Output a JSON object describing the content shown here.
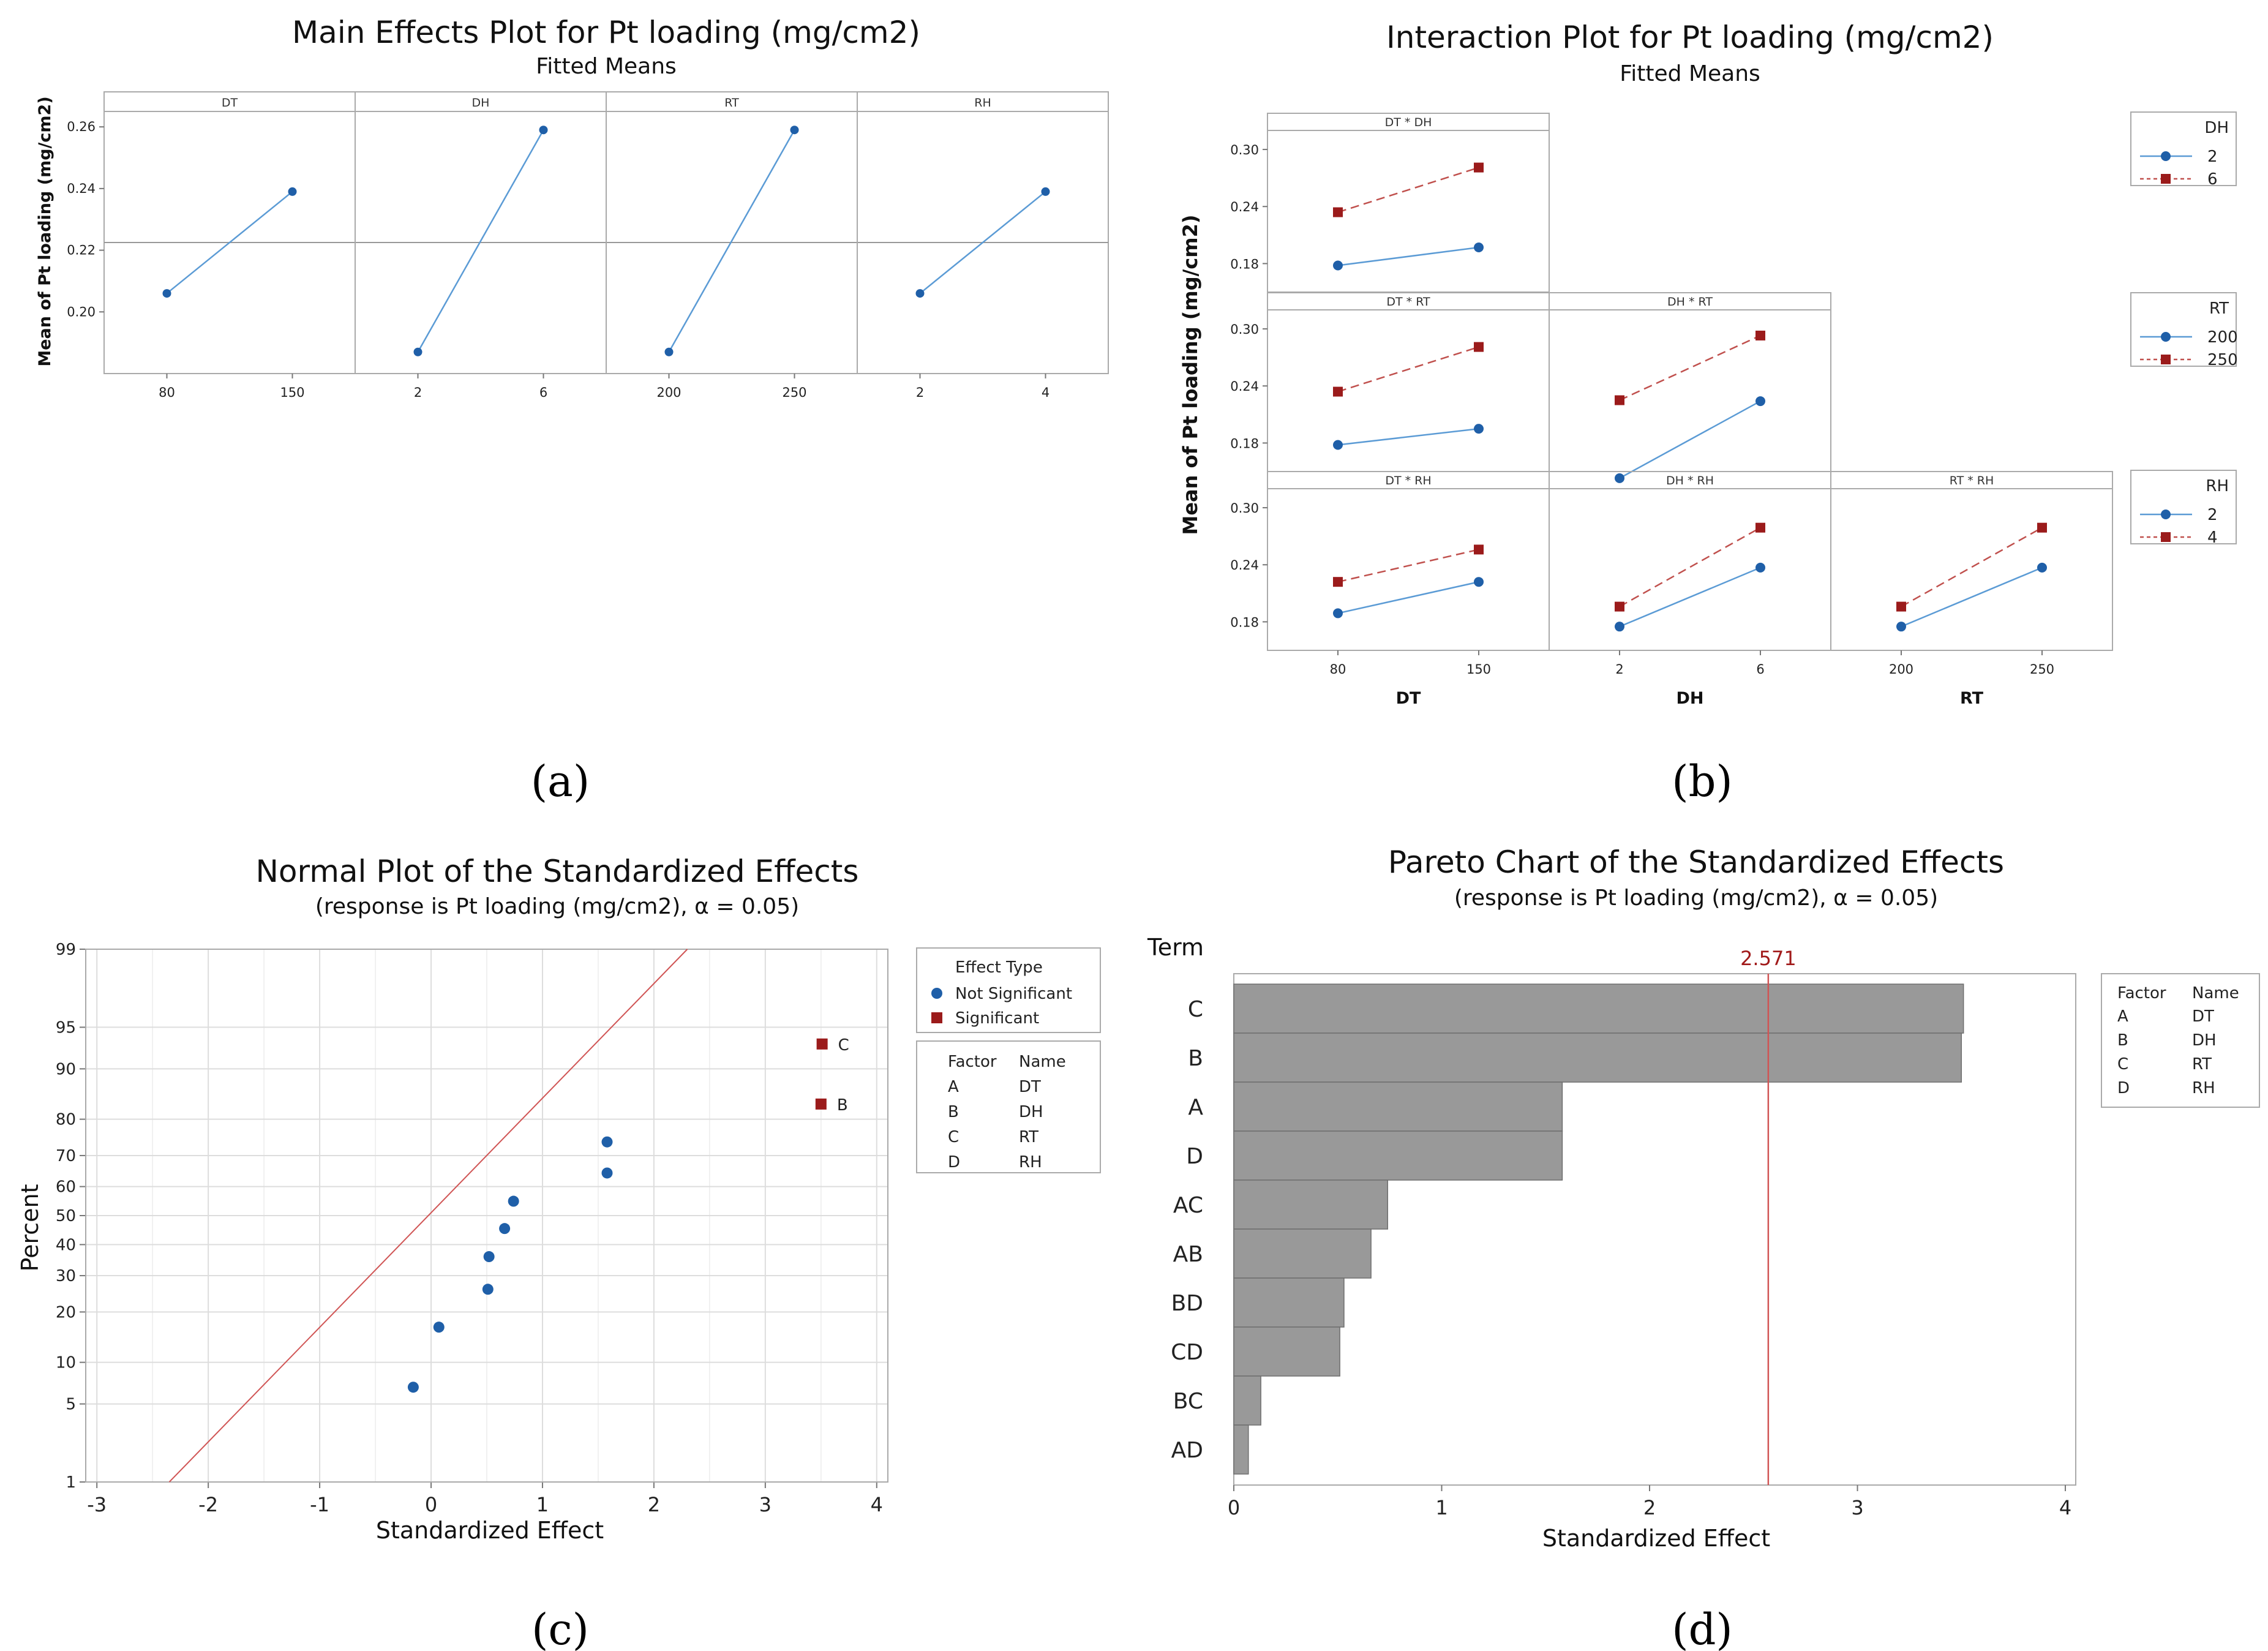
{
  "captions": [
    "(a)",
    "(b)",
    "(c)",
    "(d)"
  ],
  "colors": {
    "series1": "#1f5fa8",
    "series1_line": "#5b9bd5",
    "series2": "#9b1b1b",
    "series2_line": "#c0504d",
    "ref_line": "#d05555",
    "bar": "#999999",
    "grid": "#dddddd",
    "frame": "#aaaaaa"
  },
  "chart_data": [
    {
      "id": "a",
      "type": "line",
      "title": "Main Effects Plot for Pt loading (mg/cm2)",
      "subtitle": "Fitted Means",
      "ylabel": "Mean of Pt loading (mg/cm2)",
      "ylim": [
        0.18,
        0.265
      ],
      "yticks": [
        "0.20",
        "0.22",
        "0.24",
        "0.26"
      ],
      "overall_mean": 0.2225,
      "panels": [
        {
          "label": "DT",
          "x": [
            "80",
            "150"
          ],
          "y": [
            0.206,
            0.239
          ]
        },
        {
          "label": "DH",
          "x": [
            "2",
            "6"
          ],
          "y": [
            0.187,
            0.259
          ]
        },
        {
          "label": "RT",
          "x": [
            "200",
            "250"
          ],
          "y": [
            0.187,
            0.259
          ]
        },
        {
          "label": "RH",
          "x": [
            "2",
            "4"
          ],
          "y": [
            0.206,
            0.239
          ]
        }
      ]
    },
    {
      "id": "b",
      "type": "line",
      "title": "Interaction Plot for Pt loading (mg/cm2)",
      "subtitle": "Fitted Means",
      "ylabel": "Mean of Pt loading (mg/cm2)",
      "ylim": [
        0.15,
        0.32
      ],
      "yticks": [
        "0.30",
        "0.24",
        "0.18"
      ],
      "columns": [
        {
          "xlabel": "DT",
          "ticks": [
            "80",
            "150"
          ]
        },
        {
          "xlabel": "DH",
          "ticks": [
            "2",
            "6"
          ]
        },
        {
          "xlabel": "RT",
          "ticks": [
            "200",
            "250"
          ]
        }
      ],
      "legends": [
        {
          "title": "DH",
          "entries": [
            "2",
            "6"
          ]
        },
        {
          "title": "RT",
          "entries": [
            "200",
            "250"
          ]
        },
        {
          "title": "RH",
          "entries": [
            "2",
            "4"
          ]
        }
      ],
      "panels": [
        {
          "label": "DT * DH",
          "row": 0,
          "col": 0,
          "low": [
            0.178,
            0.197
          ],
          "high": [
            0.234,
            0.281
          ]
        },
        {
          "label": "DT * RT",
          "row": 1,
          "col": 0,
          "low": [
            0.178,
            0.195
          ],
          "high": [
            0.234,
            0.281
          ]
        },
        {
          "label": "DH * RT",
          "row": 1,
          "col": 1,
          "low": [
            0.143,
            0.224
          ],
          "high": [
            0.225,
            0.293
          ]
        },
        {
          "label": "DT * RH",
          "row": 2,
          "col": 0,
          "low": [
            0.189,
            0.222
          ],
          "high": [
            0.222,
            0.256
          ]
        },
        {
          "label": "DH * RH",
          "row": 2,
          "col": 1,
          "low": [
            0.175,
            0.237
          ],
          "high": [
            0.196,
            0.279
          ]
        },
        {
          "label": "RT * RH",
          "row": 2,
          "col": 2,
          "low": [
            0.175,
            0.237
          ],
          "high": [
            0.196,
            0.279
          ]
        }
      ]
    },
    {
      "id": "c",
      "type": "scatter",
      "title": "Normal Plot of the Standardized Effects",
      "subtitle": "(response is Pt loading (mg/cm2), α = 0.05)",
      "xlabel": "Standardized Effect",
      "ylabel": "Percent",
      "xlim": [
        -3.1,
        4.1
      ],
      "xticks": [
        "-3",
        "-2",
        "-1",
        "0",
        "1",
        "2",
        "3",
        "4"
      ],
      "yticks": [
        "1",
        "5",
        "10",
        "20",
        "30",
        "40",
        "50",
        "60",
        "70",
        "80",
        "90",
        "95",
        "99"
      ],
      "reference_line": {
        "slope_note": "normal fit",
        "x_at_1pct": -2.35,
        "x_at_99pct": 2.3
      },
      "points_not_significant": [
        {
          "x": -0.16,
          "pct": 6.7
        },
        {
          "x": 0.07,
          "pct": 16.5
        },
        {
          "x": 0.51,
          "pct": 26
        },
        {
          "x": 0.52,
          "pct": 36
        },
        {
          "x": 0.66,
          "pct": 45.5
        },
        {
          "x": 0.74,
          "pct": 55
        },
        {
          "x": 1.58,
          "pct": 64.5
        },
        {
          "x": 1.58,
          "pct": 74
        }
      ],
      "points_significant": [
        {
          "x": 3.5,
          "pct": 83.5,
          "label": "B"
        },
        {
          "x": 3.51,
          "pct": 93.3,
          "label": "C"
        }
      ],
      "legend": {
        "title": "Effect Type",
        "entries": [
          "Not Significant",
          "Significant"
        ]
      },
      "factor_table": {
        "headers": [
          "Factor",
          "Name"
        ],
        "rows": [
          [
            "A",
            "DT"
          ],
          [
            "B",
            "DH"
          ],
          [
            "C",
            "RT"
          ],
          [
            "D",
            "RH"
          ]
        ]
      }
    },
    {
      "id": "d",
      "type": "bar",
      "orientation": "horizontal",
      "title": "Pareto Chart of the Standardized Effects",
      "subtitle": "(response is Pt loading (mg/cm2), α = 0.05)",
      "xlabel": "Standardized Effect",
      "ylabel": "Term",
      "xlim": [
        0,
        4.05
      ],
      "xticks": [
        "0",
        "1",
        "2",
        "3",
        "4"
      ],
      "categories": [
        "C",
        "B",
        "A",
        "D",
        "AC",
        "AB",
        "BD",
        "CD",
        "BC",
        "AD"
      ],
      "values": [
        3.51,
        3.5,
        1.58,
        1.58,
        0.74,
        0.66,
        0.53,
        0.51,
        0.13,
        0.07
      ],
      "threshold": 2.571,
      "threshold_label": "2.571",
      "factor_table": {
        "headers": [
          "Factor",
          "Name"
        ],
        "rows": [
          [
            "A",
            "DT"
          ],
          [
            "B",
            "DH"
          ],
          [
            "C",
            "RT"
          ],
          [
            "D",
            "RH"
          ]
        ]
      }
    }
  ]
}
